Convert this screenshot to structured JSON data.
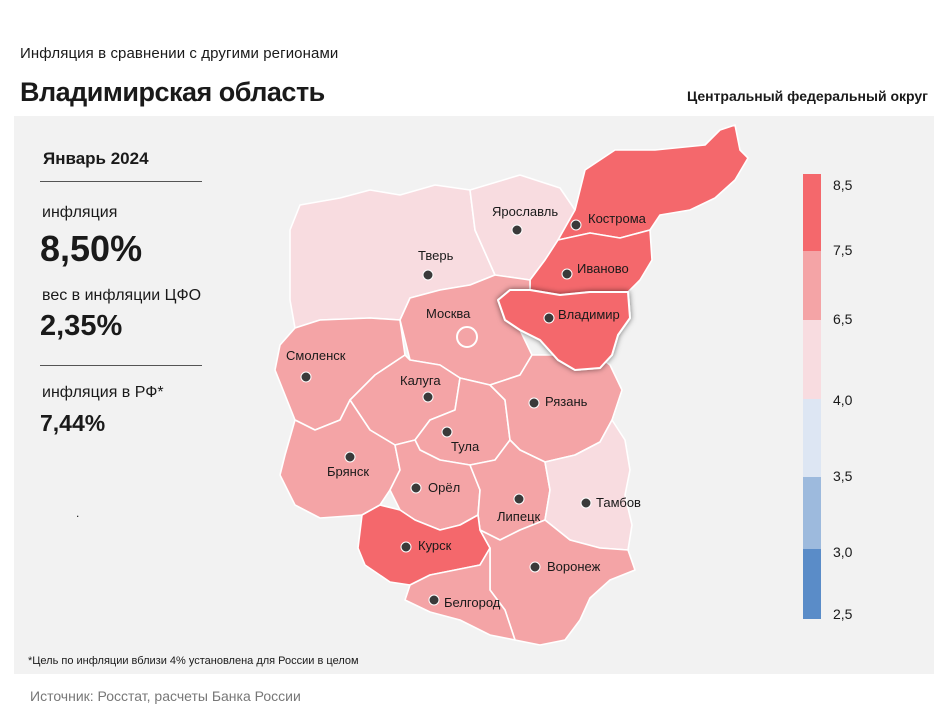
{
  "header": {
    "subtitle": "Инфляция  в сравнении  с другими  регионами",
    "title": "Владимирская область",
    "district": "Центральный федеральный округ"
  },
  "stats": {
    "period": "Январь 2024",
    "inflation_label": "инфляция",
    "inflation_value": "8,50%",
    "weight_label": "вес в инфляции  ЦФО",
    "weight_value": "2,35%",
    "rf_label": "инфляция  в РФ*",
    "rf_value": "7,44%",
    "dot": "."
  },
  "regions": [
    {
      "name": "Ярославль",
      "color": "#f8dce0"
    },
    {
      "name": "Кострома",
      "color": "#f4686c"
    },
    {
      "name": "Иваново",
      "color": "#f4686c"
    },
    {
      "name": "Тверь",
      "color": "#f8dce0"
    },
    {
      "name": "Москва",
      "color": "#f4a4a6"
    },
    {
      "name": "Владимир",
      "color": "#f4686c"
    },
    {
      "name": "Смоленск",
      "color": "#f4a4a6"
    },
    {
      "name": "Калуга",
      "color": "#f4a4a6"
    },
    {
      "name": "Рязань",
      "color": "#f4a4a6"
    },
    {
      "name": "Тула",
      "color": "#f4a4a6"
    },
    {
      "name": "Брянск",
      "color": "#f4a4a6"
    },
    {
      "name": "Орёл",
      "color": "#f4a4a6"
    },
    {
      "name": "Липецк",
      "color": "#f4a4a6"
    },
    {
      "name": "Тамбов",
      "color": "#f8dce0"
    },
    {
      "name": "Курск",
      "color": "#f4686c"
    },
    {
      "name": "Воронеж",
      "color": "#f4a4a6"
    },
    {
      "name": "Белгород",
      "color": "#f4a4a6"
    }
  ],
  "legend": {
    "ticks": [
      "8,5",
      "7,5",
      "6,5",
      "4,0",
      "3,5",
      "3,0",
      "2,5"
    ],
    "colors": [
      "#f4686c",
      "#f4a4a6",
      "#f8dce0",
      "#dde6f3",
      "#9dbadd",
      "#5a8cc8"
    ]
  },
  "footnote": "*Цель по инфляции вблизи 4% установлена для России в целом",
  "source": "Источник: Росстат, расчеты Банка России"
}
